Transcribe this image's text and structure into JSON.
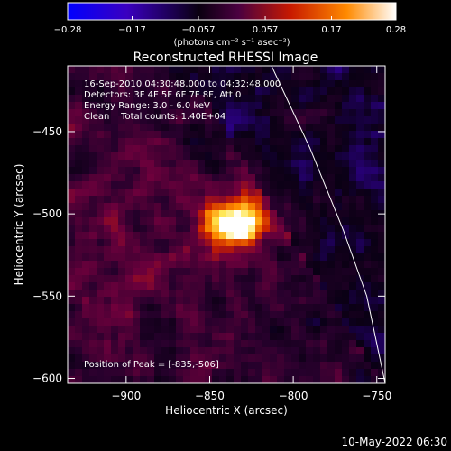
{
  "chart_data": {
    "type": "heatmap",
    "title": "Reconstructed RHESSI Image",
    "xlabel": "Heliocentric X (arcsec)",
    "ylabel": "Heliocentric Y (arcsec)",
    "xlim": [
      -935,
      -745
    ],
    "ylim": [
      -603,
      -410
    ],
    "x_ticks": [
      -900,
      -850,
      -800,
      -750
    ],
    "x_tick_labels": [
      "−900",
      "−850",
      "−800",
      "−750"
    ],
    "y_ticks": [
      -450,
      -500,
      -550,
      -600
    ],
    "y_tick_labels": [
      "−450",
      "−500",
      "−550",
      "−600"
    ],
    "colorbar": {
      "range": [
        -0.28,
        0.28
      ],
      "ticks": [
        -0.28,
        -0.17,
        -0.057,
        0.057,
        0.17,
        0.28
      ],
      "tick_labels": [
        "−0.28",
        "−0.17",
        "−0.057",
        "0.057",
        "0.17",
        "0.28"
      ],
      "units": "(photons cm⁻² s⁻¹ asec⁻²)",
      "colors": [
        "#0000ff",
        "#3a00c0",
        "#000000",
        "#6a0050",
        "#c81a00",
        "#ff8000",
        "#ffffff"
      ]
    },
    "annotations": [
      "16-Sep-2010 04:30:48.000 to 04:32:48.000",
      "Detectors: 3F 4F 5F 6F 7F 8F, Att 0",
      "Energy Range: 3.0 - 6.0 keV",
      "Clean    Total counts: 1.40E+04"
    ],
    "peak": {
      "x": -835,
      "y": -506,
      "label": "Position of Peak = [-835,-506]"
    },
    "limb_curve": [
      [
        -813,
        -410
      ],
      [
        -790,
        -460
      ],
      [
        -770,
        -510
      ],
      [
        -756,
        -550
      ],
      [
        -745,
        -603
      ]
    ]
  },
  "footer_date": "10-May-2022 06:30"
}
